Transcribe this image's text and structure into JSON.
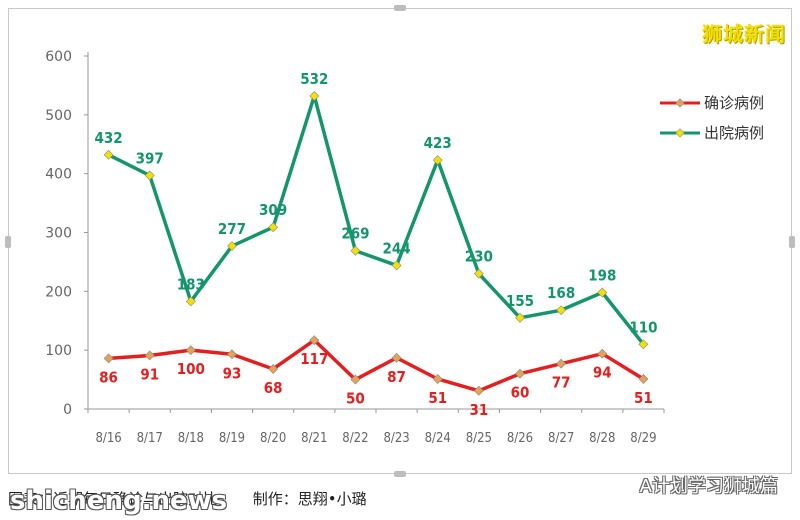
{
  "watermark": "狮城新闻",
  "caption": {
    "left": "图表：近期每日确诊与出院对比",
    "right": "制作：思翔•小璐"
  },
  "site_watermark": "shicheng.news",
  "wechat_watermark": "A计划学习狮城篇",
  "colors": {
    "confirmed": "#e41f1f",
    "discharged": "#14956b",
    "axis": "#666666"
  },
  "chart_data": {
    "type": "line",
    "title": "",
    "xlabel": "",
    "ylabel": "",
    "ylim": [
      0,
      600
    ],
    "yticks": [
      0,
      100,
      200,
      300,
      400,
      500,
      600
    ],
    "grid": false,
    "legend_position": "right",
    "categories": [
      "8/16",
      "8/17",
      "8/18",
      "8/19",
      "8/20",
      "8/21",
      "8/22",
      "8/23",
      "8/24",
      "8/25",
      "8/26",
      "8/27",
      "8/28",
      "8/29"
    ],
    "series": [
      {
        "name": "确诊病例",
        "color": "#e41f1f",
        "marker_color": "#e4a15a",
        "values": [
          86,
          91,
          100,
          93,
          68,
          117,
          50,
          87,
          51,
          31,
          60,
          77,
          94,
          51
        ]
      },
      {
        "name": "出院病例",
        "color": "#14956b",
        "marker_color": "#f2e000",
        "values": [
          432,
          397,
          183,
          277,
          309,
          532,
          269,
          244,
          423,
          230,
          155,
          168,
          198,
          110
        ]
      }
    ]
  }
}
